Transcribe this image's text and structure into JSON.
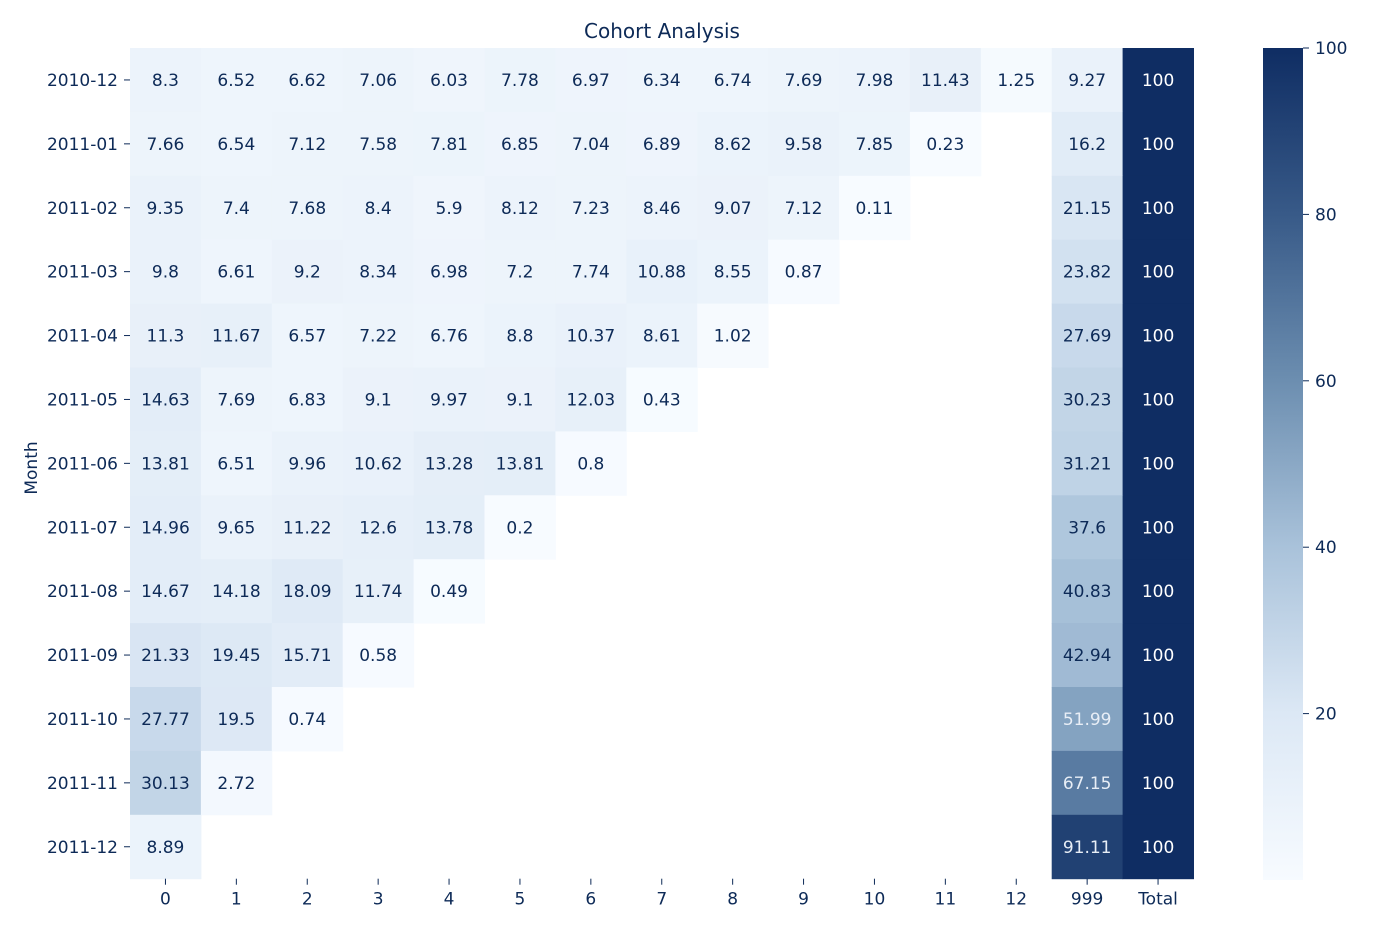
{
  "chart_data": {
    "type": "heatmap",
    "title": "Cohort Analysis",
    "xlabel": "",
    "ylabel": "Month",
    "columns": [
      "0",
      "1",
      "2",
      "3",
      "4",
      "5",
      "6",
      "7",
      "8",
      "9",
      "10",
      "11",
      "12",
      "999",
      "Total"
    ],
    "rows": [
      "2010-12",
      "2011-01",
      "2011-02",
      "2011-03",
      "2011-04",
      "2011-05",
      "2011-06",
      "2011-07",
      "2011-08",
      "2011-09",
      "2011-10",
      "2011-11",
      "2011-12"
    ],
    "values": [
      [
        8.3,
        6.52,
        6.62,
        7.06,
        6.03,
        7.78,
        6.97,
        6.34,
        6.74,
        7.69,
        7.98,
        11.43,
        1.25,
        9.27,
        100
      ],
      [
        7.66,
        6.54,
        7.12,
        7.58,
        7.81,
        6.85,
        7.04,
        6.89,
        8.62,
        9.58,
        7.85,
        0.23,
        null,
        16.2,
        100
      ],
      [
        9.35,
        7.4,
        7.68,
        8.4,
        5.9,
        8.12,
        7.23,
        8.46,
        9.07,
        7.12,
        0.11,
        null,
        null,
        21.15,
        100
      ],
      [
        9.8,
        6.61,
        9.2,
        8.34,
        6.98,
        7.2,
        7.74,
        10.88,
        8.55,
        0.87,
        null,
        null,
        null,
        23.82,
        100
      ],
      [
        11.3,
        11.67,
        6.57,
        7.22,
        6.76,
        8.8,
        10.37,
        8.61,
        1.02,
        null,
        null,
        null,
        null,
        27.69,
        100
      ],
      [
        14.63,
        7.69,
        6.83,
        9.1,
        9.97,
        9.1,
        12.03,
        0.43,
        null,
        null,
        null,
        null,
        null,
        30.23,
        100
      ],
      [
        13.81,
        6.51,
        9.96,
        10.62,
        13.28,
        13.81,
        0.8,
        null,
        null,
        null,
        null,
        null,
        null,
        31.21,
        100
      ],
      [
        14.96,
        9.65,
        11.22,
        12.6,
        13.78,
        0.2,
        null,
        null,
        null,
        null,
        null,
        null,
        null,
        37.6,
        100
      ],
      [
        14.67,
        14.18,
        18.09,
        11.74,
        0.49,
        null,
        null,
        null,
        null,
        null,
        null,
        null,
        null,
        40.83,
        100
      ],
      [
        21.33,
        19.45,
        15.71,
        0.58,
        null,
        null,
        null,
        null,
        null,
        null,
        null,
        null,
        null,
        42.94,
        100
      ],
      [
        27.77,
        19.5,
        0.74,
        null,
        null,
        null,
        null,
        null,
        null,
        null,
        null,
        null,
        null,
        51.99,
        100
      ],
      [
        30.13,
        2.72,
        null,
        null,
        null,
        null,
        null,
        null,
        null,
        null,
        null,
        null,
        null,
        67.15,
        100
      ],
      [
        8.89,
        null,
        null,
        null,
        null,
        null,
        null,
        null,
        null,
        null,
        null,
        null,
        null,
        91.11,
        100
      ]
    ],
    "colorbar": {
      "min": 0,
      "max": 100,
      "ticks": [
        20,
        40,
        60,
        80,
        100
      ],
      "colors": [
        "#f7fbff",
        "#0f2d63"
      ]
    },
    "grid": false,
    "colorbar_placement": "right"
  }
}
